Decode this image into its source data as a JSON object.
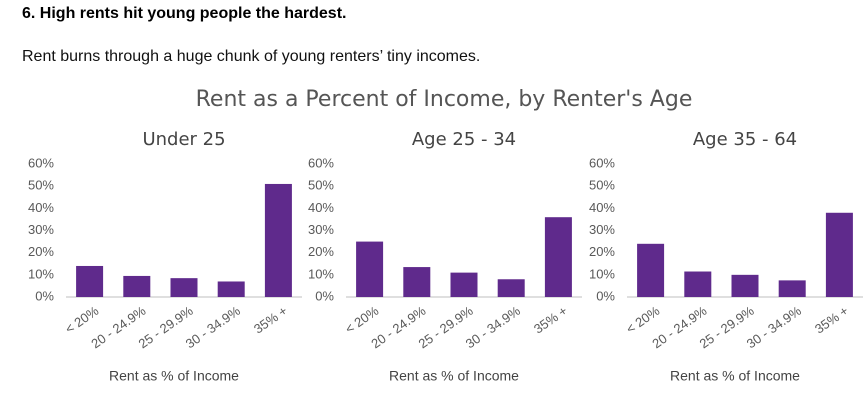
{
  "heading": "6. High rents hit young people the hardest.",
  "intro": "Rent burns through a huge chunk of young renters’ tiny incomes.",
  "figure_title": "Rent as a Percent of Income, by Renter's Age",
  "chart_data": [
    {
      "type": "bar",
      "title": "Under 25",
      "categories": [
        "< 20%",
        "20 - 24.9%",
        "25 - 29.9%",
        "30 - 34.9%",
        "35% +"
      ],
      "values": [
        14,
        9.5,
        8.5,
        7,
        51
      ],
      "color": "#5f2a8c",
      "ylim": [
        0,
        60
      ],
      "yticks": [
        {
          "value": 0,
          "label": "0%"
        },
        {
          "value": 10,
          "label": "10%"
        },
        {
          "value": 20,
          "label": "20%"
        },
        {
          "value": 30,
          "label": "30%"
        },
        {
          "value": 40,
          "label": "40%"
        },
        {
          "value": 50,
          "label": "50%"
        },
        {
          "value": 60,
          "label": "60%"
        }
      ],
      "x_label": "Rent as % of Income"
    },
    {
      "type": "bar",
      "title": "Age 25 - 34",
      "categories": [
        "< 20%",
        "20 - 24.9%",
        "25 - 29.9%",
        "30 - 34.9%",
        "35% +"
      ],
      "values": [
        25,
        13.5,
        11,
        8,
        36
      ],
      "color": "#5f2a8c",
      "ylim": [
        0,
        60
      ],
      "yticks": [
        {
          "value": 0,
          "label": "0%"
        },
        {
          "value": 10,
          "label": "10%"
        },
        {
          "value": 20,
          "label": "20%"
        },
        {
          "value": 30,
          "label": "30%"
        },
        {
          "value": 40,
          "label": "40%"
        },
        {
          "value": 50,
          "label": "50%"
        },
        {
          "value": 60,
          "label": "60%"
        }
      ],
      "x_label": "Rent as % of Income"
    },
    {
      "type": "bar",
      "title": "Age 35 - 64",
      "categories": [
        "< 20%",
        "20 - 24.9%",
        "25 - 29.9%",
        "30 - 34.9%",
        "35% +"
      ],
      "values": [
        24,
        11.5,
        10,
        7.5,
        38
      ],
      "color": "#5f2a8c",
      "ylim": [
        0,
        60
      ],
      "yticks": [
        {
          "value": 0,
          "label": "0%"
        },
        {
          "value": 10,
          "label": "10%"
        },
        {
          "value": 20,
          "label": "20%"
        },
        {
          "value": 30,
          "label": "30%"
        },
        {
          "value": 40,
          "label": "40%"
        },
        {
          "value": 50,
          "label": "50%"
        },
        {
          "value": 60,
          "label": "60%"
        }
      ],
      "x_label": "Rent as % of Income"
    }
  ]
}
